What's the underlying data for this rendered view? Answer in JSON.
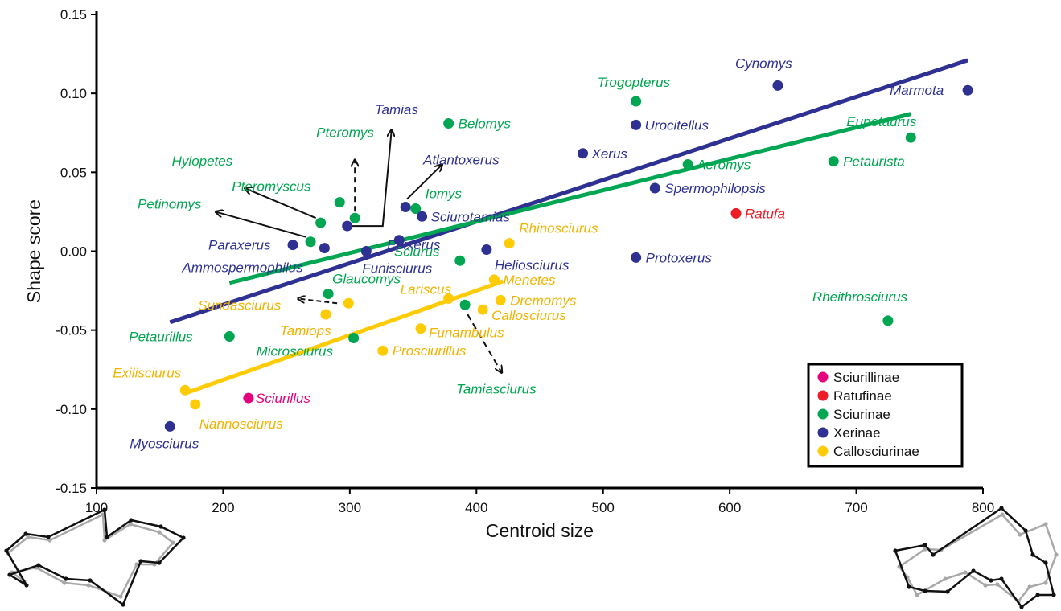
{
  "chart_data": {
    "type": "scatter",
    "xlabel": "Centroid size",
    "ylabel": "Shape score",
    "xlim": [
      100,
      800
    ],
    "ylim": [
      -0.15,
      0.15
    ],
    "xticks": [
      "100",
      "200",
      "300",
      "400",
      "500",
      "600",
      "700",
      "800"
    ],
    "yticks": [
      "0.15",
      "0.10",
      "0.05",
      "0.00",
      "-0.05",
      "-0.10",
      "-0.15"
    ],
    "grid": false,
    "legend_position": "bottom-right",
    "colors": {
      "Sciurillinae": "#e6007e",
      "Ratufinae": "#ee1c25",
      "Sciurinae": "#00a651",
      "Xerinae": "#2e3192",
      "Callosciurinae": "#ffcb05"
    },
    "series": [
      {
        "name": "Sciurillinae",
        "points": [
          {
            "label": "Sciurillus",
            "x": 220,
            "y": -0.093
          }
        ]
      },
      {
        "name": "Ratufinae",
        "points": [
          {
            "label": "Ratufa",
            "x": 605,
            "y": 0.024
          }
        ]
      },
      {
        "name": "Sciurinae",
        "points": [
          {
            "label": "Trogopterus",
            "x": 526,
            "y": 0.095
          },
          {
            "label": "Belomys",
            "x": 378,
            "y": 0.081
          },
          {
            "label": "Eupetaurus",
            "x": 743,
            "y": 0.072
          },
          {
            "label": "Petaurista",
            "x": 682,
            "y": 0.057
          },
          {
            "label": "Aeromys",
            "x": 567,
            "y": 0.055
          },
          {
            "label": "Pteromys",
            "x": 304,
            "y": 0.021
          },
          {
            "label": "Pteromyscus",
            "x": 292,
            "y": 0.031
          },
          {
            "label": "Hylopetes",
            "x": 277,
            "y": 0.018
          },
          {
            "label": "Petinomys",
            "x": 269,
            "y": 0.006
          },
          {
            "label": "Iomys",
            "x": 352,
            "y": 0.027
          },
          {
            "label": "Sciurus",
            "x": 387,
            "y": -0.006
          },
          {
            "label": "Glaucomys",
            "x": 283,
            "y": -0.027
          },
          {
            "label": "Petaurillus",
            "x": 205,
            "y": -0.054
          },
          {
            "label": "Microsciurus",
            "x": 303,
            "y": -0.055
          },
          {
            "label": "Tamiasciurus",
            "x": 391,
            "y": -0.034
          },
          {
            "label": "Rheithrosciurus",
            "x": 725,
            "y": -0.044
          }
        ]
      },
      {
        "name": "Xerinae",
        "points": [
          {
            "label": "Cynomys",
            "x": 638,
            "y": 0.105
          },
          {
            "label": "Marmota",
            "x": 788,
            "y": 0.102
          },
          {
            "label": "Urocitellus",
            "x": 526,
            "y": 0.08
          },
          {
            "label": "Xerus",
            "x": 484,
            "y": 0.062
          },
          {
            "label": "Spermophilopsis",
            "x": 541,
            "y": 0.04
          },
          {
            "label": "Tamias",
            "x": 298,
            "y": 0.016
          },
          {
            "label": "Atlantoxerus",
            "x": 344,
            "y": 0.028
          },
          {
            "label": "Sciurotamias",
            "x": 357,
            "y": 0.022
          },
          {
            "label": "Epixerus",
            "x": 339,
            "y": 0.007
          },
          {
            "label": "Paraxerus",
            "x": 255,
            "y": 0.004
          },
          {
            "label": "Ammospermophilus",
            "x": 280,
            "y": 0.002
          },
          {
            "label": "Funisciurus",
            "x": 313,
            "y": 0.0
          },
          {
            "label": "Heliosciurus",
            "x": 408,
            "y": 0.001
          },
          {
            "label": "Protoxerus",
            "x": 526,
            "y": -0.004
          },
          {
            "label": "Myosciurus",
            "x": 158,
            "y": -0.111
          }
        ]
      },
      {
        "name": "Callosciurinae",
        "points": [
          {
            "label": "Rhinosciurus",
            "x": 426,
            "y": 0.005
          },
          {
            "label": "Menetes",
            "x": 414,
            "y": -0.018
          },
          {
            "label": "Lariscus",
            "x": 378,
            "y": -0.03
          },
          {
            "label": "Dremomys",
            "x": 419,
            "y": -0.031
          },
          {
            "label": "Callosciurus",
            "x": 405,
            "y": -0.037
          },
          {
            "label": "Sundasciurus",
            "x": 299,
            "y": -0.033
          },
          {
            "label": "Tamiops",
            "x": 281,
            "y": -0.04
          },
          {
            "label": "Funambulus",
            "x": 356,
            "y": -0.049
          },
          {
            "label": "Prosciurillus",
            "x": 326,
            "y": -0.063
          },
          {
            "label": "Exilisciurus",
            "x": 170,
            "y": -0.088
          },
          {
            "label": "Nannosciurus",
            "x": 178,
            "y": -0.097
          }
        ]
      }
    ],
    "regression_lines": [
      {
        "group": "Xerinae",
        "x": [
          158,
          788
        ],
        "y": [
          -0.045,
          0.121
        ]
      },
      {
        "group": "Sciurinae",
        "x": [
          205,
          743
        ],
        "y": [
          -0.02,
          0.087
        ]
      },
      {
        "group": "Callosciurinae",
        "x": [
          170,
          421
        ],
        "y": [
          -0.09,
          -0.019
        ]
      }
    ]
  }
}
